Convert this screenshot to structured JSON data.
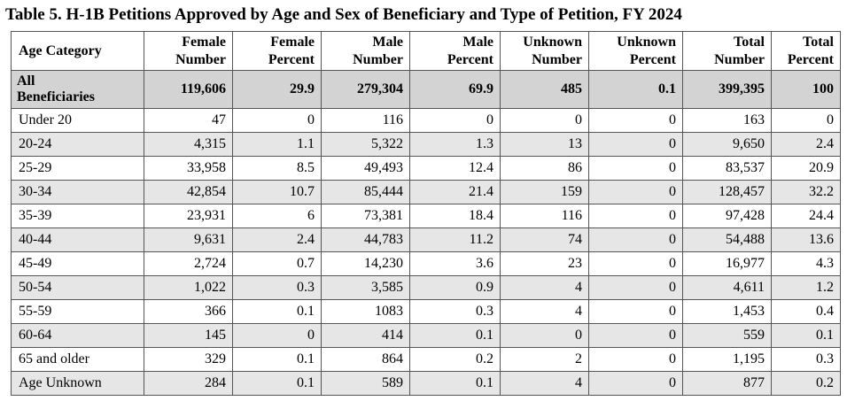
{
  "title": "Table 5. H-1B Petitions Approved by Age and Sex of Beneficiary and Type of Petition, FY 2024",
  "headers": [
    [
      "Age Category",
      ""
    ],
    [
      "Female",
      "Number"
    ],
    [
      "Female",
      "Percent"
    ],
    [
      "Male",
      "Number"
    ],
    [
      "Male",
      "Percent"
    ],
    [
      "Unknown",
      "Number"
    ],
    [
      "Unknown",
      "Percent"
    ],
    [
      "Total",
      "Number"
    ],
    [
      "Total",
      "Percent"
    ]
  ],
  "all_row": {
    "label_line1": "All",
    "label_line2": "Beneficiaries",
    "values": [
      "119,606",
      "29.9",
      "279,304",
      "69.9",
      "485",
      "0.1",
      "399,395",
      "100"
    ]
  },
  "rows": [
    [
      "Under 20",
      "47",
      "0",
      "116",
      "0",
      "0",
      "0",
      "163",
      "0"
    ],
    [
      "20-24",
      "4,315",
      "1.1",
      "5,322",
      "1.3",
      "13",
      "0",
      "9,650",
      "2.4"
    ],
    [
      "25-29",
      "33,958",
      "8.5",
      "49,493",
      "12.4",
      "86",
      "0",
      "83,537",
      "20.9"
    ],
    [
      "30-34",
      "42,854",
      "10.7",
      "85,444",
      "21.4",
      "159",
      "0",
      "128,457",
      "32.2"
    ],
    [
      "35-39",
      "23,931",
      "6",
      "73,381",
      "18.4",
      "116",
      "0",
      "97,428",
      "24.4"
    ],
    [
      "40-44",
      "9,631",
      "2.4",
      "44,783",
      "11.2",
      "74",
      "0",
      "54,488",
      "13.6"
    ],
    [
      "45-49",
      "2,724",
      "0.7",
      "14,230",
      "3.6",
      "23",
      "0",
      "16,977",
      "4.3"
    ],
    [
      "50-54",
      "1,022",
      "0.3",
      "3,585",
      "0.9",
      "4",
      "0",
      "4,611",
      "1.2"
    ],
    [
      "55-59",
      "366",
      "0.1",
      "1083",
      "0.3",
      "4",
      "0",
      "1,453",
      "0.4"
    ],
    [
      "60-64",
      "145",
      "0",
      "414",
      "0.1",
      "0",
      "0",
      "559",
      "0.1"
    ],
    [
      "65 and older",
      "329",
      "0.1",
      "864",
      "0.2",
      "2",
      "0",
      "1,195",
      "0.3"
    ],
    [
      "Age Unknown",
      "284",
      "0.1",
      "589",
      "0.1",
      "4",
      "0",
      "877",
      "0.2"
    ]
  ]
}
